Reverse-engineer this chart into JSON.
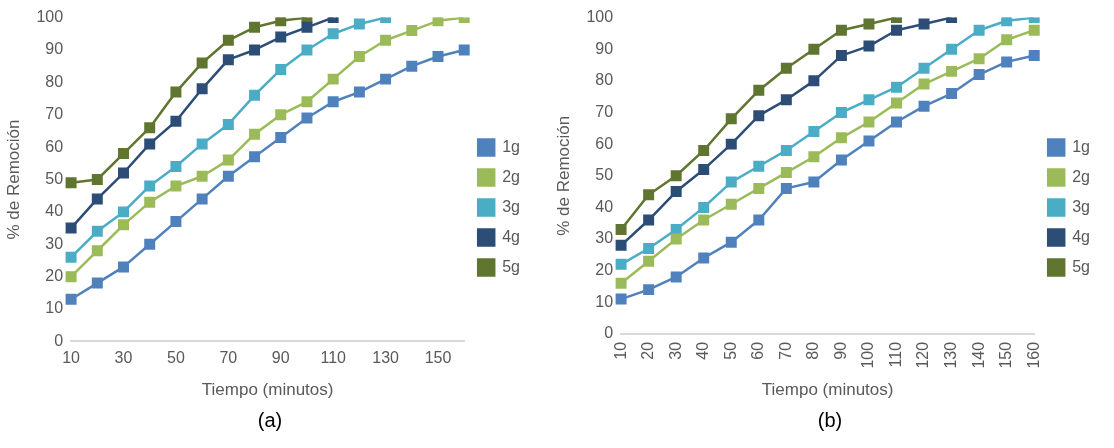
{
  "chart_data": [
    {
      "type": "line",
      "xlabel": "Tiempo (minutos)",
      "ylabel": "% de Remoción",
      "annotations": [
        "(a)"
      ],
      "categories": [
        "10",
        null,
        "30",
        null,
        "50",
        null,
        "70",
        null,
        "90",
        null,
        "110",
        null,
        "130",
        null,
        "150",
        null
      ],
      "ylim": [
        0,
        100
      ],
      "yticks": [
        0,
        10,
        20,
        30,
        40,
        50,
        60,
        70,
        80,
        90,
        100
      ],
      "grid": false,
      "legend": "right",
      "marker": "square",
      "series": [
        {
          "name": "1g",
          "color": "#4f81bd",
          "values": [
            13,
            18,
            23,
            30,
            37,
            44,
            51,
            57,
            63,
            69,
            74,
            77,
            81,
            85,
            88,
            90
          ]
        },
        {
          "name": "2g",
          "color": "#9bbb59",
          "values": [
            20,
            28,
            36,
            43,
            48,
            51,
            56,
            64,
            70,
            74,
            81,
            88,
            93,
            96,
            99,
            100
          ]
        },
        {
          "name": "3g",
          "color": "#4bacc6",
          "values": [
            26,
            34,
            40,
            48,
            54,
            61,
            67,
            76,
            84,
            90,
            95,
            98,
            100,
            null,
            null,
            null
          ]
        },
        {
          "name": "4g",
          "color": "#2c4d75",
          "values": [
            35,
            44,
            52,
            61,
            68,
            78,
            87,
            90,
            94,
            97,
            100,
            null,
            null,
            null,
            null,
            null
          ]
        },
        {
          "name": "5g",
          "color": "#5f7530",
          "values": [
            49,
            50,
            58,
            66,
            77,
            86,
            93,
            97,
            99,
            100,
            null,
            null,
            null,
            null,
            null,
            null
          ]
        }
      ]
    },
    {
      "type": "line",
      "xlabel": "Tiempo (minutos)",
      "ylabel": "% de Remoción",
      "annotations": [
        "(b)"
      ],
      "categories": [
        "10",
        "20",
        "30",
        "40",
        "50",
        "60",
        "70",
        "80",
        "90",
        "100",
        "110",
        "120",
        "130",
        "140",
        "150",
        "160"
      ],
      "ylim": [
        0,
        100
      ],
      "yticks": [
        0,
        10,
        20,
        30,
        40,
        50,
        60,
        70,
        80,
        90,
        100
      ],
      "grid": false,
      "legend": "right",
      "marker": "square",
      "series": [
        {
          "name": "1g",
          "color": "#4f81bd",
          "values": [
            11,
            14,
            18,
            24,
            29,
            36,
            46,
            48,
            55,
            61,
            67,
            72,
            76,
            82,
            86,
            88
          ]
        },
        {
          "name": "2g",
          "color": "#9bbb59",
          "values": [
            16,
            23,
            30,
            36,
            41,
            46,
            51,
            56,
            62,
            67,
            73,
            79,
            83,
            87,
            93,
            96
          ]
        },
        {
          "name": "3g",
          "color": "#4bacc6",
          "values": [
            22,
            27,
            33,
            40,
            48,
            53,
            58,
            64,
            70,
            74,
            78,
            84,
            90,
            96,
            99,
            100
          ]
        },
        {
          "name": "4g",
          "color": "#2c4d75",
          "values": [
            28,
            36,
            45,
            52,
            60,
            69,
            74,
            80,
            88,
            91,
            96,
            98,
            100,
            null,
            null,
            null
          ]
        },
        {
          "name": "5g",
          "color": "#5f7530",
          "values": [
            33,
            44,
            50,
            58,
            68,
            77,
            84,
            90,
            96,
            98,
            100,
            null,
            null,
            null,
            null,
            null
          ]
        }
      ]
    }
  ]
}
